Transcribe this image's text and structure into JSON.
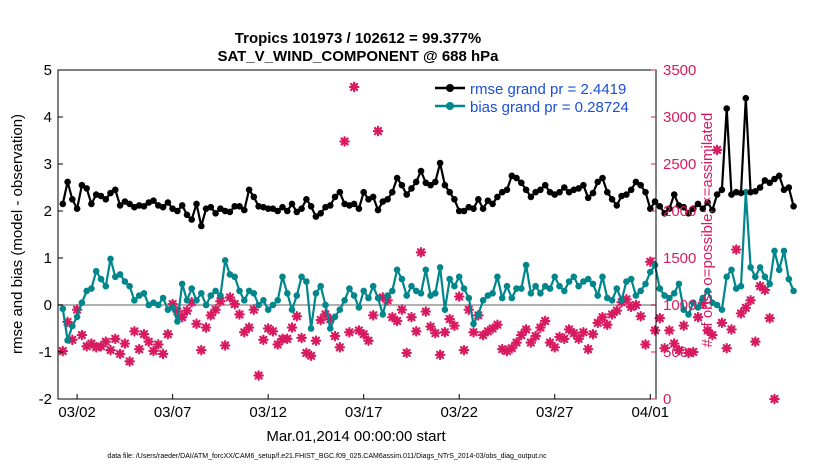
{
  "title_line1": "Tropics 101973 / 102612 = 99.377%",
  "title_line2": "SAT_V_WIND_COMPONENT @ 688 hPa",
  "footer": "data file: /Users/raeder/DAI/ATM_forcXX/CAM6_setup/f.e21.FHIST_BGC.f09_025.CAM6assim.011/Diags_NTrS_2014-03/obs_diag_output.nc",
  "colors": {
    "rmse": "#000000",
    "bias": "#00868b",
    "obs": "#d81b60",
    "legend_text": "#1a4fd6",
    "zero_line": "#b0b0b0"
  },
  "chart_data": {
    "type": "line",
    "xlabel": "Mar.01,2014 00:00:00 start",
    "ylabel": "rmse and bias (model - observation)",
    "y2label": "# of obs: o=possible; ×=assimilated",
    "xlim": [
      0,
      31.3
    ],
    "x_tick_values": [
      1,
      6,
      11,
      16,
      21,
      26,
      31
    ],
    "x_tick_labels": [
      "03/02",
      "03/07",
      "03/12",
      "03/17",
      "03/22",
      "03/27",
      "04/01"
    ],
    "ylim": [
      -2,
      5
    ],
    "y_ticks": [
      -2,
      -1,
      0,
      1,
      2,
      3,
      4,
      5
    ],
    "y2lim": [
      0,
      3500
    ],
    "y2_ticks": [
      0,
      500,
      1000,
      1500,
      2000,
      2500,
      3000,
      3500
    ],
    "legend_location": "top-right",
    "grid": false,
    "series": [
      {
        "name": "rmse grand pr = 2.4419",
        "axis": "left",
        "x_step_days": 0.25,
        "values": [
          2.15,
          2.62,
          2.25,
          2.05,
          2.55,
          2.48,
          2.15,
          2.35,
          2.32,
          2.25,
          2.38,
          2.45,
          2.12,
          2.2,
          2.15,
          2.08,
          2.12,
          2.1,
          2.18,
          2.22,
          2.12,
          2.08,
          2.18,
          2.05,
          2.0,
          2.12,
          1.92,
          1.82,
          2.15,
          1.68,
          2.05,
          2.08,
          1.95,
          2.05,
          2.0,
          1.98,
          2.1,
          2.1,
          2.02,
          2.45,
          2.3,
          2.1,
          2.08,
          2.05,
          2.05,
          2.0,
          2.08,
          2.0,
          2.15,
          1.98,
          2.05,
          2.25,
          2.1,
          1.88,
          1.95,
          2.08,
          2.12,
          2.3,
          2.4,
          2.15,
          2.12,
          2.15,
          2.05,
          2.4,
          2.25,
          2.3,
          2.02,
          2.2,
          2.25,
          2.4,
          2.7,
          2.55,
          2.35,
          2.48,
          2.62,
          2.85,
          2.6,
          2.55,
          2.62,
          3.02,
          2.55,
          2.4,
          2.25,
          2.0,
          2.0,
          2.08,
          2.05,
          2.25,
          2.05,
          2.22,
          2.15,
          2.3,
          2.4,
          2.45,
          2.75,
          2.7,
          2.6,
          2.45,
          2.3,
          2.4,
          2.45,
          2.55,
          2.4,
          2.35,
          2.4,
          2.5,
          2.4,
          2.45,
          2.48,
          2.55,
          2.28,
          2.38,
          2.62,
          2.7,
          2.4,
          2.25,
          2.12,
          2.32,
          2.35,
          2.45,
          2.62,
          2.55,
          2.4,
          2.05,
          2.2,
          2.1,
          1.95,
          2.05,
          2.35,
          2.12,
          2.08,
          1.95,
          2.05,
          2.15,
          2.05,
          2.18,
          2.02,
          2.35,
          2.45,
          4.18,
          2.35,
          2.4,
          2.38,
          4.4,
          2.4,
          2.42,
          2.5,
          2.65,
          2.6,
          2.68,
          2.75,
          2.45,
          2.5,
          2.1
        ]
      },
      {
        "name": "bias grand pr = 0.28724",
        "axis": "left",
        "x_step_days": 0.25,
        "values": [
          -0.08,
          -0.75,
          -0.45,
          -0.25,
          0.05,
          0.3,
          0.35,
          0.72,
          0.55,
          0.4,
          0.98,
          0.6,
          0.65,
          0.5,
          0.4,
          0.1,
          0.2,
          0.25,
          0.0,
          0.05,
          0.0,
          0.15,
          -0.1,
          -0.05,
          -0.35,
          0.45,
          0.1,
          0.35,
          0.1,
          0.25,
          0.0,
          0.2,
          0.3,
          0.2,
          0.95,
          0.65,
          0.6,
          0.3,
          0.1,
          0.3,
          0.25,
          0.0,
          0.1,
          -0.1,
          0.0,
          0.1,
          0.6,
          0.25,
          -0.1,
          0.2,
          0.6,
          0.5,
          -0.5,
          0.25,
          0.4,
          0.0,
          -0.5,
          -0.25,
          -0.1,
          0.1,
          0.35,
          0.2,
          -0.05,
          0.3,
          0.15,
          0.4,
          0.15,
          -0.2,
          0.2,
          0.3,
          0.75,
          0.55,
          0.2,
          0.4,
          0.3,
          0.25,
          0.75,
          0.2,
          0.25,
          0.8,
          -0.1,
          0.55,
          0.4,
          0.6,
          0.35,
          0.15,
          -0.4,
          -0.2,
          0.1,
          0.2,
          0.25,
          0.6,
          0.15,
          0.4,
          0.15,
          0.35,
          0.35,
          0.85,
          0.25,
          0.4,
          0.25,
          0.4,
          0.35,
          0.6,
          0.4,
          0.3,
          0.5,
          0.6,
          0.4,
          0.5,
          0.55,
          0.45,
          0.2,
          0.6,
          0.15,
          0.1,
          0.35,
          0.1,
          0.5,
          0.55,
          0.2,
          0.3,
          0.45,
          0.7,
          0.85,
          0.35,
          0.2,
          0.15,
          0.25,
          0.45,
          -0.1,
          -0.2,
          0.05,
          -0.05,
          0.15,
          0.3,
          0.05,
          0.0,
          -0.1,
          0.6,
          0.75,
          0.35,
          0.4,
          2.4,
          0.8,
          0.6,
          0.8,
          0.6,
          0.45,
          1.15,
          0.75,
          1.15,
          0.55,
          0.3
        ]
      },
      {
        "name": "",
        "axis": "right",
        "x_step_days": 0.25,
        "values": [
          510,
          820,
          630,
          950,
          680,
          560,
          590,
          550,
          560,
          610,
          520,
          640,
          480,
          590,
          400,
          720,
          530,
          690,
          610,
          510,
          580,
          480,
          690,
          1010,
          930,
          870,
          940,
          1030,
          800,
          520,
          760,
          890,
          950,
          1040,
          570,
          1080,
          1010,
          900,
          710,
          760,
          950,
          250,
          630,
          750,
          720,
          580,
          640,
          640,
          760,
          880,
          650,
          490,
          460,
          620,
          840,
          900,
          850,
          670,
          550,
          2740,
          710,
          3320,
          730,
          690,
          620,
          890,
          2850,
          1080,
          1050,
          870,
          830,
          950,
          490,
          870,
          720,
          1560,
          930,
          770,
          700,
          470,
          710,
          850,
          780,
          1090,
          520,
          950,
          710,
          890,
          680,
          720,
          750,
          790,
          530,
          510,
          540,
          600,
          680,
          740,
          600,
          670,
          760,
          830,
          600,
          550,
          660,
          640,
          740,
          700,
          640,
          710,
          530,
          690,
          810,
          870,
          790,
          900,
          940,
          1030,
          1060,
          980,
          1000,
          880,
          580,
          1460,
          730,
          860,
          540,
          730,
          590,
          520,
          780,
          490,
          500,
          870,
          1020,
          730,
          680,
          2650,
          810,
          540,
          740,
          1590,
          910,
          970,
          1050,
          610,
          1200,
          1160,
          860,
          0
        ]
      }
    ]
  }
}
